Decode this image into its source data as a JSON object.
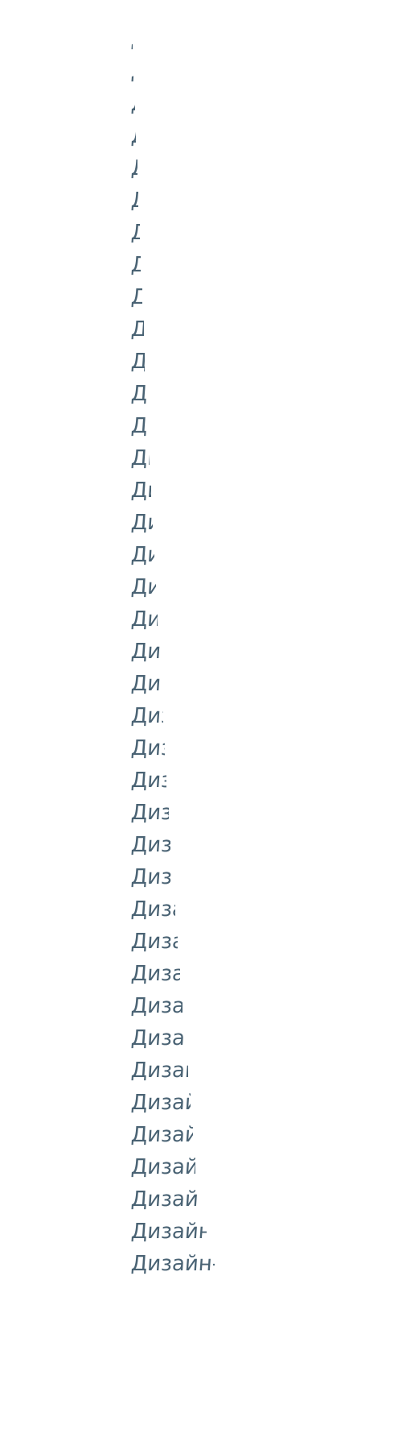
{
  "word": "Дизайн-",
  "text_color": "#4a6374",
  "background_color": "#ffffff",
  "frames": [
    {
      "reveal": 0.015
    },
    {
      "reveal": 0.03
    },
    {
      "reveal": 0.045
    },
    {
      "reveal": 0.06
    },
    {
      "reveal": 0.075
    },
    {
      "reveal": 0.09
    },
    {
      "reveal": 0.105
    },
    {
      "reveal": 0.12
    },
    {
      "reveal": 0.135
    },
    {
      "reveal": 0.15
    },
    {
      "reveal": 0.165
    },
    {
      "reveal": 0.18
    },
    {
      "reveal": 0.2
    },
    {
      "reveal": 0.22
    },
    {
      "reveal": 0.24
    },
    {
      "reveal": 0.26
    },
    {
      "reveal": 0.28
    },
    {
      "reveal": 0.3
    },
    {
      "reveal": 0.32
    },
    {
      "reveal": 0.345
    },
    {
      "reveal": 0.365
    },
    {
      "reveal": 0.385
    },
    {
      "reveal": 0.405
    },
    {
      "reveal": 0.425
    },
    {
      "reveal": 0.45
    },
    {
      "reveal": 0.47
    },
    {
      "reveal": 0.5
    },
    {
      "reveal": 0.53
    },
    {
      "reveal": 0.56
    },
    {
      "reveal": 0.59
    },
    {
      "reveal": 0.62
    },
    {
      "reveal": 0.65
    },
    {
      "reveal": 0.68
    },
    {
      "reveal": 0.71
    },
    {
      "reveal": 0.74
    },
    {
      "reveal": 0.77
    },
    {
      "reveal": 0.8
    },
    {
      "reveal": 0.9
    },
    {
      "reveal": 1.0
    }
  ]
}
